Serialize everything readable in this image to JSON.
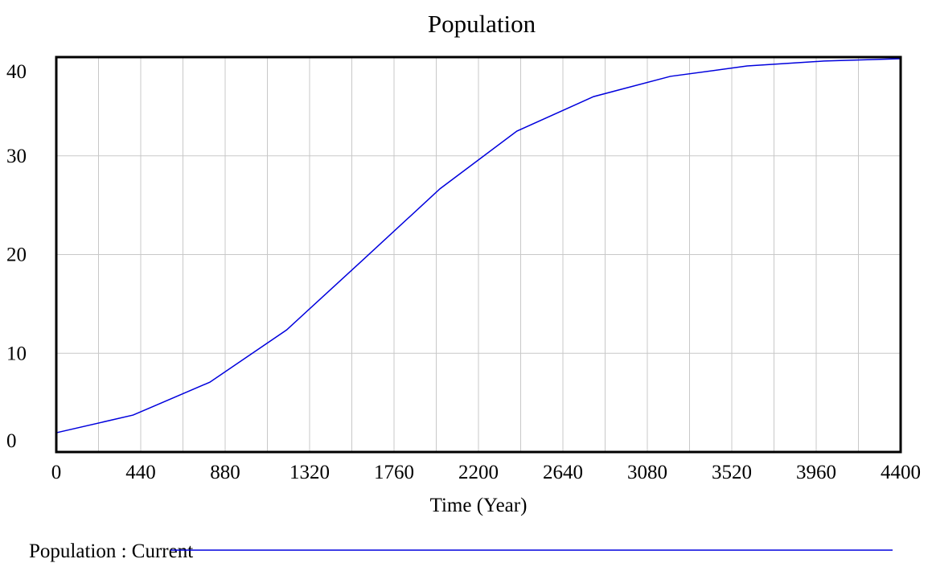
{
  "chart_data": {
    "type": "line",
    "title": "Population",
    "x_label": "Time (Year)",
    "x": [
      0,
      400,
      800,
      1200,
      1600,
      2000,
      2400,
      2800,
      3200,
      3600,
      4000,
      4400
    ],
    "series": [
      {
        "name": "Population : Current",
        "color": "#0000dd",
        "values": [
          1.95,
          3.74,
          7.07,
          12.36,
          19.5,
          26.67,
          32.5,
          36.0,
          38.05,
          39.1,
          39.6,
          39.84
        ]
      }
    ],
    "xlim": [
      0,
      4400
    ],
    "xticks": [
      0,
      440,
      880,
      1320,
      1760,
      2200,
      2640,
      3080,
      3520,
      3960,
      4400
    ],
    "ylim": [
      0,
      40
    ],
    "yticks": [
      0,
      10,
      20,
      30,
      40
    ],
    "grid": true
  }
}
